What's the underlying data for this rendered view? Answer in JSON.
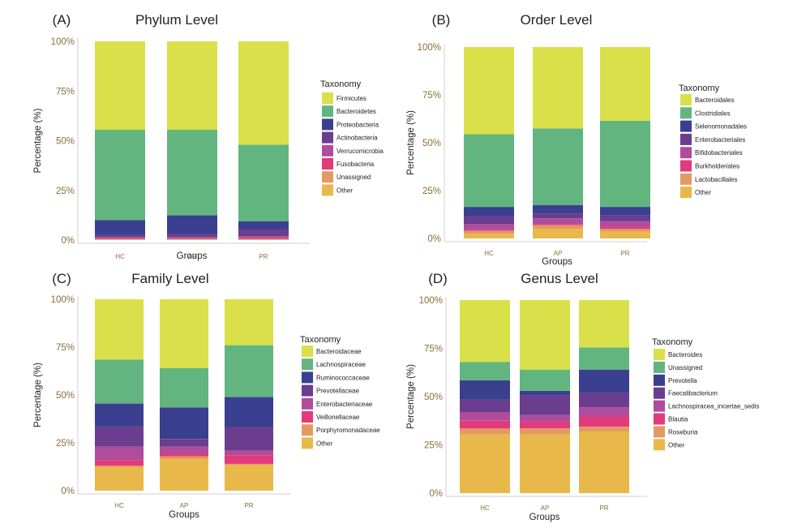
{
  "colors": {
    "yellow_green": "#d9e04a",
    "green": "#62b57f",
    "navy": "#3b3f8f",
    "purple": "#6a3d8e",
    "magenta": "#b04c9c",
    "pink": "#e23a7a",
    "orange": "#e39a62",
    "gold": "#e8b84a"
  },
  "chart_data": [
    {
      "type": "bar",
      "stacked": true,
      "panel_label": "(A)",
      "title": "Phylum Level",
      "xlabel": "Groups",
      "ylabel": "Percentage (%)",
      "ylim": [
        0,
        100
      ],
      "yticks": [
        "0%",
        "25%",
        "50%",
        "75%",
        "100%"
      ],
      "categories": [
        "HC",
        "AP",
        "PR"
      ],
      "legend_title": "Taxonomy",
      "series": [
        {
          "name": "Other",
          "color": "#e8b84a",
          "values": [
            0.3,
            0.3,
            0.3
          ]
        },
        {
          "name": "Unassigned",
          "color": "#e39a62",
          "values": [
            0.2,
            0.2,
            0.2
          ]
        },
        {
          "name": "Fusobacteria",
          "color": "#e23a7a",
          "values": [
            0.3,
            0.2,
            0.5
          ]
        },
        {
          "name": "Verrucomicrobia",
          "color": "#b04c9c",
          "values": [
            0.7,
            0.8,
            1.0
          ]
        },
        {
          "name": "Actinobacteria",
          "color": "#6a3d8e",
          "values": [
            1.0,
            1.5,
            3.5
          ]
        },
        {
          "name": "Proteobacteria",
          "color": "#3b3f8f",
          "values": [
            7.5,
            9.5,
            4.0
          ]
        },
        {
          "name": "Bacteroidetes",
          "color": "#62b57f",
          "values": [
            45.5,
            43.0,
            38.5
          ]
        },
        {
          "name": "Firmicutes",
          "color": "#d9e04a",
          "values": [
            44.5,
            44.5,
            52.0
          ]
        }
      ]
    },
    {
      "type": "bar",
      "stacked": true,
      "panel_label": "(B)",
      "title": "Order Level",
      "xlabel": "Groups",
      "ylabel": "Percentage (%)",
      "ylim": [
        0,
        100
      ],
      "yticks": [
        "0%",
        "25%",
        "50%",
        "75%",
        "100%"
      ],
      "categories": [
        "HC",
        "AP",
        "PR"
      ],
      "legend_title": "Taxonomy",
      "series": [
        {
          "name": "Other",
          "color": "#e8b84a",
          "values": [
            2.5,
            5.0,
            3.5
          ]
        },
        {
          "name": "Lactobacillales",
          "color": "#e39a62",
          "values": [
            1.5,
            2.0,
            1.5
          ]
        },
        {
          "name": "Burkholderiales",
          "color": "#e23a7a",
          "values": [
            0.5,
            0.5,
            1.0
          ]
        },
        {
          "name": "Bifidobacteriales",
          "color": "#b04c9c",
          "values": [
            3.0,
            3.0,
            3.0
          ]
        },
        {
          "name": "Enterobacteriales",
          "color": "#6a3d8e",
          "values": [
            4.0,
            2.5,
            3.0
          ]
        },
        {
          "name": "Selenomonadales",
          "color": "#3b3f8f",
          "values": [
            5.0,
            4.5,
            4.5
          ]
        },
        {
          "name": "Clostridiales",
          "color": "#62b57f",
          "values": [
            38.0,
            40.0,
            45.0
          ]
        },
        {
          "name": "Bacteroidales",
          "color": "#d9e04a",
          "values": [
            45.5,
            42.5,
            38.5
          ]
        }
      ]
    },
    {
      "type": "bar",
      "stacked": true,
      "panel_label": "(C)",
      "title": "Family Level",
      "xlabel": "Groups",
      "ylabel": "Percentage (%)",
      "ylim": [
        0,
        100
      ],
      "yticks": [
        "0%",
        "25%",
        "50%",
        "75%",
        "100%"
      ],
      "categories": [
        "HC",
        "AP",
        "PR"
      ],
      "legend_title": "Taxonomy",
      "series": [
        {
          "name": "Other",
          "color": "#e8b84a",
          "values": [
            12.5,
            16.5,
            13.5
          ]
        },
        {
          "name": "Porphyromonadaceae",
          "color": "#e39a62",
          "values": [
            0.5,
            1.5,
            0.5
          ]
        },
        {
          "name": "Veillonellaceae",
          "color": "#e23a7a",
          "values": [
            3.0,
            1.5,
            4.5
          ]
        },
        {
          "name": "Enterobacteriaceae",
          "color": "#b04c9c",
          "values": [
            7.0,
            3.5,
            2.5
          ]
        },
        {
          "name": "Prevotellaceae",
          "color": "#6a3d8e",
          "values": [
            10.5,
            4.0,
            12.5
          ]
        },
        {
          "name": "Ruminococcaceae",
          "color": "#3b3f8f",
          "values": [
            12.0,
            16.5,
            15.5
          ]
        },
        {
          "name": "Lachnospiraceae",
          "color": "#62b57f",
          "values": [
            23.0,
            20.5,
            27.0
          ]
        },
        {
          "name": "Bacteroidaceae",
          "color": "#d9e04a",
          "values": [
            31.5,
            36.0,
            24.0
          ]
        }
      ]
    },
    {
      "type": "bar",
      "stacked": true,
      "panel_label": "(D)",
      "title": "Genus Level",
      "xlabel": "Groups",
      "ylabel": "Percentage (%)",
      "ylim": [
        0,
        100
      ],
      "yticks": [
        "0%",
        "25%",
        "50%",
        "75%",
        "100%"
      ],
      "categories": [
        "HC",
        "AP",
        "PR"
      ],
      "legend_title": "Taxonomy",
      "series": [
        {
          "name": "Other",
          "color": "#e8b84a",
          "values": [
            30.5,
            30.5,
            32.0
          ]
        },
        {
          "name": "Roseburia",
          "color": "#e39a62",
          "values": [
            3.0,
            3.0,
            2.5
          ]
        },
        {
          "name": "Blautia",
          "color": "#e23a7a",
          "values": [
            4.0,
            3.5,
            5.0
          ]
        },
        {
          "name": "Lachnospiracea_incertae_sedis",
          "color": "#b04c9c",
          "values": [
            4.5,
            3.5,
            5.0
          ]
        },
        {
          "name": "Faecalibacterium",
          "color": "#6a3d8e",
          "values": [
            6.5,
            10.0,
            7.5
          ]
        },
        {
          "name": "Prevotella",
          "color": "#3b3f8f",
          "values": [
            10.0,
            2.5,
            12.0
          ]
        },
        {
          "name": "Unassigned",
          "color": "#62b57f",
          "values": [
            9.5,
            11.0,
            11.5
          ]
        },
        {
          "name": "Bacteroides",
          "color": "#d9e04a",
          "values": [
            32.0,
            36.0,
            24.5
          ]
        }
      ]
    }
  ]
}
